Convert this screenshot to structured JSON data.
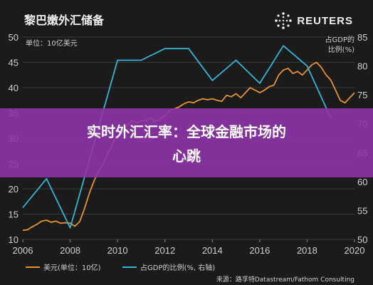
{
  "header": {
    "title": "黎巴嫩外汇储备",
    "brand": "REUTERS"
  },
  "banner": {
    "text_line1": "实时外汇汇率：全球金融市场的",
    "text_line2": "心跳"
  },
  "colors": {
    "series_fx": "#e8922e",
    "series_gdp": "#33b4d8",
    "background": "#1b1b1b",
    "banner": "#8e34a8"
  },
  "chart_data": {
    "type": "line",
    "left_unit": "单位：10亿美元",
    "right_unit_line1": "占GDP的",
    "right_unit_line2": "比例(%)",
    "xlim": [
      2006,
      2020
    ],
    "ylim_left": [
      10,
      50
    ],
    "ylim_right": [
      50,
      85
    ],
    "x_ticks": [
      "2006",
      "2008",
      "2010",
      "2012",
      "2014",
      "2016",
      "2018",
      "2020"
    ],
    "y_left_ticks": [
      "10",
      "15",
      "20",
      "25",
      "30",
      "35",
      "40",
      "45",
      "50"
    ],
    "y_right_ticks": [
      "50",
      "55",
      "60",
      "65",
      "70",
      "75",
      "80",
      "85"
    ],
    "series": [
      {
        "name": "美元(单位：10亿)",
        "axis": "left",
        "x": [
          2006.0,
          2006.2,
          2006.4,
          2006.6,
          2006.8,
          2007.0,
          2007.2,
          2007.4,
          2007.6,
          2007.8,
          2008.0,
          2008.2,
          2008.4,
          2008.6,
          2008.8,
          2009.0,
          2009.2,
          2009.4,
          2009.6,
          2009.8,
          2010.0,
          2010.2,
          2010.4,
          2010.6,
          2010.8,
          2011.0,
          2011.2,
          2011.4,
          2011.6,
          2011.8,
          2012.0,
          2012.2,
          2012.4,
          2012.6,
          2012.8,
          2013.0,
          2013.2,
          2013.4,
          2013.6,
          2013.8,
          2014.0,
          2014.2,
          2014.4,
          2014.6,
          2014.8,
          2015.0,
          2015.2,
          2015.4,
          2015.6,
          2015.8,
          2016.0,
          2016.2,
          2016.4,
          2016.6,
          2016.8,
          2017.0,
          2017.2,
          2017.4,
          2017.6,
          2017.8,
          2018.0,
          2018.2,
          2018.4,
          2018.6,
          2018.8,
          2019.0,
          2019.2,
          2019.4,
          2019.6,
          2019.8,
          2020.0
        ],
        "values": [
          11.8,
          11.9,
          12.5,
          13.0,
          13.6,
          13.8,
          13.4,
          13.6,
          13.2,
          13.3,
          13.2,
          12.6,
          13.5,
          16.0,
          19.0,
          21.5,
          23.5,
          25.0,
          27.0,
          29.0,
          30.5,
          31.0,
          32.5,
          33.5,
          33.0,
          33.5,
          33.5,
          34.0,
          33.3,
          33.8,
          34.5,
          35.5,
          35.8,
          36.2,
          36.8,
          37.2,
          37.0,
          37.5,
          37.8,
          37.6,
          37.8,
          37.5,
          37.3,
          38.5,
          38.2,
          38.8,
          38.0,
          39.0,
          40.0,
          39.5,
          39.0,
          39.5,
          40.2,
          40.5,
          42.5,
          43.5,
          43.8,
          42.8,
          43.2,
          42.5,
          43.5,
          44.5,
          45.0,
          44.0,
          42.5,
          41.5,
          39.5,
          37.5,
          37.0,
          38.0,
          39.0
        ]
      },
      {
        "name": "占GDP的比例(%, 右轴)",
        "axis": "right",
        "x": [
          2006,
          2007,
          2008,
          2010,
          2011,
          2012,
          2013,
          2014,
          2015,
          2016,
          2017,
          2018,
          2019
        ],
        "values": [
          55.5,
          60.5,
          52.0,
          81.0,
          81.0,
          83.0,
          83.0,
          77.5,
          81.0,
          77.0,
          83.5,
          80.0,
          71.0
        ]
      }
    ],
    "legend": [
      "美元(单位：10亿)",
      "占GDP的比例(%, 右轴)"
    ],
    "legend_position": "bottom",
    "source": "来源：路孚特Datastream/Fathom Consulting"
  }
}
